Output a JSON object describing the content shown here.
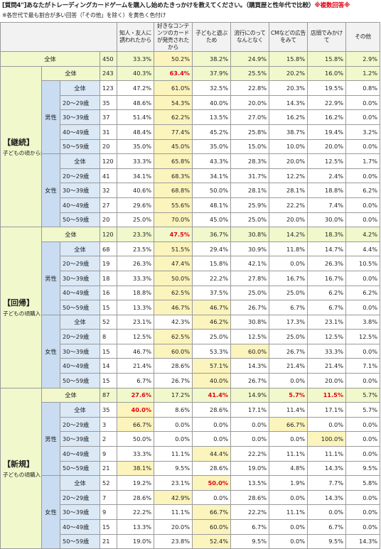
{
  "title_main": "[質問4\"]あなたがトレーディングカードゲームを購入し始めたきっかけを教えてください。（購買歴と性年代で比較）",
  "title_tag": "※複数回答※",
  "note": "※各世代で最も割合が多い回答（「その他」を除く）を黄色く色付け",
  "columns": [
    "知人・友人に誘われたから",
    "好きなコンテンツのカードが発売されたから",
    "子どもと遊ぶため",
    "流行にのってなんとなく",
    "CMなどの広告をみて",
    "店頭でみかけて",
    "その他"
  ],
  "highlight_color": "#fbf4bd",
  "total_row": {
    "label": "全体",
    "n": "450",
    "values": [
      "33.3%",
      "50.2%",
      "38.2%",
      "24.9%",
      "15.8%",
      "15.8%",
      "2.9%"
    ],
    "hl": [
      1
    ]
  },
  "segments": [
    {
      "name": "【継続】",
      "desc": "子どもの頃から継続して購入している",
      "total": {
        "label": "全体",
        "n": "243",
        "values": [
          "40.3%",
          "63.4%",
          "37.9%",
          "25.5%",
          "20.2%",
          "16.0%",
          "1.2%"
        ],
        "red": [
          1
        ],
        "hl": []
      },
      "groups": [
        {
          "gender": "男性",
          "rows": [
            {
              "label": "全体",
              "n": "123",
              "values": [
                "47.2%",
                "61.0%",
                "32.5%",
                "22.8%",
                "20.3%",
                "19.5%",
                "0.8%"
              ],
              "hl": [
                1
              ]
            },
            {
              "label": "20～29歳",
              "n": "35",
              "values": [
                "48.6%",
                "54.3%",
                "40.0%",
                "20.0%",
                "14.3%",
                "22.9%",
                "0.0%"
              ],
              "hl": [
                1
              ]
            },
            {
              "label": "30～39歳",
              "n": "37",
              "values": [
                "51.4%",
                "62.2%",
                "13.5%",
                "27.0%",
                "16.2%",
                "16.2%",
                "0.0%"
              ],
              "hl": [
                1
              ]
            },
            {
              "label": "40～49歳",
              "n": "31",
              "values": [
                "48.4%",
                "77.4%",
                "45.2%",
                "25.8%",
                "38.7%",
                "19.4%",
                "3.2%"
              ],
              "hl": [
                1
              ]
            },
            {
              "label": "50～59歳",
              "n": "20",
              "values": [
                "35.0%",
                "45.0%",
                "35.0%",
                "15.0%",
                "10.0%",
                "20.0%",
                "0.0%"
              ],
              "hl": [
                1
              ]
            }
          ]
        },
        {
          "gender": "女性",
          "rows": [
            {
              "label": "全体",
              "n": "120",
              "values": [
                "33.3%",
                "65.8%",
                "43.3%",
                "28.3%",
                "20.0%",
                "12.5%",
                "1.7%"
              ],
              "hl": [
                1
              ]
            },
            {
              "label": "20～29歳",
              "n": "41",
              "values": [
                "34.1%",
                "68.3%",
                "34.1%",
                "31.7%",
                "12.2%",
                "2.4%",
                "0.0%"
              ],
              "hl": [
                1
              ]
            },
            {
              "label": "30～39歳",
              "n": "32",
              "values": [
                "40.6%",
                "68.8%",
                "50.0%",
                "28.1%",
                "28.1%",
                "18.8%",
                "6.2%"
              ],
              "hl": [
                1
              ]
            },
            {
              "label": "40～49歳",
              "n": "27",
              "values": [
                "29.6%",
                "55.6%",
                "48.1%",
                "25.9%",
                "22.2%",
                "7.4%",
                "0.0%"
              ],
              "hl": [
                1
              ]
            },
            {
              "label": "50～59歳",
              "n": "20",
              "values": [
                "25.0%",
                "70.0%",
                "45.0%",
                "25.0%",
                "20.0%",
                "30.0%",
                "0.0%"
              ],
              "hl": [
                1
              ]
            }
          ]
        }
      ]
    },
    {
      "name": "【回帰】",
      "desc": "子どもの頃購入したことがあり、大人になってから再度購入したことがある",
      "total": {
        "label": "全体",
        "n": "120",
        "values": [
          "23.3%",
          "47.5%",
          "36.7%",
          "30.8%",
          "14.2%",
          "18.3%",
          "4.2%"
        ],
        "red": [
          1
        ],
        "hl": []
      },
      "groups": [
        {
          "gender": "男性",
          "rows": [
            {
              "label": "全体",
              "n": "68",
              "values": [
                "23.5%",
                "51.5%",
                "29.4%",
                "30.9%",
                "11.8%",
                "14.7%",
                "4.4%"
              ],
              "hl": [
                1
              ]
            },
            {
              "label": "20～29歳",
              "n": "19",
              "values": [
                "26.3%",
                "47.4%",
                "15.8%",
                "42.1%",
                "0.0%",
                "26.3%",
                "10.5%"
              ],
              "hl": [
                1
              ]
            },
            {
              "label": "30～39歳",
              "n": "18",
              "values": [
                "33.3%",
                "50.0%",
                "22.2%",
                "27.8%",
                "16.7%",
                "16.7%",
                "0.0%"
              ],
              "hl": [
                1
              ]
            },
            {
              "label": "40～49歳",
              "n": "16",
              "values": [
                "18.8%",
                "62.5%",
                "37.5%",
                "25.0%",
                "25.0%",
                "6.2%",
                "6.2%"
              ],
              "hl": [
                1
              ]
            },
            {
              "label": "50～59歳",
              "n": "15",
              "values": [
                "13.3%",
                "46.7%",
                "46.7%",
                "26.7%",
                "6.7%",
                "6.7%",
                "0.0%"
              ],
              "hl": [
                1,
                2
              ]
            }
          ]
        },
        {
          "gender": "女性",
          "rows": [
            {
              "label": "全体",
              "n": "52",
              "values": [
                "23.1%",
                "42.3%",
                "46.2%",
                "30.8%",
                "17.3%",
                "23.1%",
                "3.8%"
              ],
              "hl": [
                2
              ]
            },
            {
              "label": "20～29歳",
              "n": "8",
              "values": [
                "12.5%",
                "62.5%",
                "25.0%",
                "12.5%",
                "25.0%",
                "12.5%",
                "12.5%"
              ],
              "hl": [
                1
              ]
            },
            {
              "label": "30～39歳",
              "n": "15",
              "values": [
                "46.7%",
                "60.0%",
                "53.3%",
                "60.0%",
                "26.7%",
                "33.3%",
                "0.0%"
              ],
              "hl": [
                1,
                3
              ]
            },
            {
              "label": "40～49歳",
              "n": "14",
              "values": [
                "21.4%",
                "28.6%",
                "57.1%",
                "14.3%",
                "21.4%",
                "21.4%",
                "7.1%"
              ],
              "hl": [
                2
              ]
            },
            {
              "label": "50～59歳",
              "n": "15",
              "values": [
                "6.7%",
                "26.7%",
                "40.0%",
                "26.7%",
                "0.0%",
                "20.0%",
                "0.0%"
              ],
              "hl": [
                2
              ]
            }
          ]
        }
      ]
    },
    {
      "name": "【新規】",
      "desc": "子どもの頃購入したことはないが、大人になってから購入したことがある",
      "total": {
        "label": "全体",
        "n": "87",
        "values": [
          "27.6%",
          "17.2%",
          "41.4%",
          "14.9%",
          "5.7%",
          "11.5%",
          "5.7%"
        ],
        "red": [
          0,
          2,
          4,
          5
        ],
        "hl": []
      },
      "groups": [
        {
          "gender": "男性",
          "rows": [
            {
              "label": "全体",
              "n": "35",
              "values": [
                "40.0%",
                "8.6%",
                "28.6%",
                "17.1%",
                "11.4%",
                "17.1%",
                "5.7%"
              ],
              "hl": [
                0
              ],
              "red": [
                0
              ]
            },
            {
              "label": "20～29歳",
              "n": "3",
              "values": [
                "66.7%",
                "0.0%",
                "0.0%",
                "0.0%",
                "66.7%",
                "0.0%",
                "0.0%"
              ],
              "hl": [
                0,
                4
              ]
            },
            {
              "label": "30～39歳",
              "n": "2",
              "values": [
                "50.0%",
                "0.0%",
                "0.0%",
                "0.0%",
                "0.0%",
                "100.0%",
                "0.0%"
              ],
              "hl": [
                5
              ]
            },
            {
              "label": "40～49歳",
              "n": "9",
              "values": [
                "33.3%",
                "11.1%",
                "44.4%",
                "22.2%",
                "11.1%",
                "11.1%",
                "0.0%"
              ],
              "hl": [
                2
              ]
            },
            {
              "label": "50～59歳",
              "n": "21",
              "values": [
                "38.1%",
                "9.5%",
                "28.6%",
                "19.0%",
                "4.8%",
                "14.3%",
                "9.5%"
              ],
              "hl": [
                0
              ]
            }
          ]
        },
        {
          "gender": "女性",
          "rows": [
            {
              "label": "全体",
              "n": "52",
              "values": [
                "19.2%",
                "23.1%",
                "50.0%",
                "13.5%",
                "1.9%",
                "7.7%",
                "5.8%"
              ],
              "hl": [
                2
              ],
              "red": [
                2
              ]
            },
            {
              "label": "20～29歳",
              "n": "7",
              "values": [
                "28.6%",
                "42.9%",
                "0.0%",
                "28.6%",
                "0.0%",
                "14.3%",
                "0.0%"
              ],
              "hl": [
                1
              ]
            },
            {
              "label": "30～39歳",
              "n": "9",
              "values": [
                "22.2%",
                "11.1%",
                "66.7%",
                "22.2%",
                "11.1%",
                "0.0%",
                "0.0%"
              ],
              "hl": [
                2
              ]
            },
            {
              "label": "40～49歳",
              "n": "15",
              "values": [
                "13.3%",
                "20.0%",
                "60.0%",
                "6.7%",
                "0.0%",
                "6.7%",
                "0.0%"
              ],
              "hl": [
                2
              ]
            },
            {
              "label": "50～59歳",
              "n": "21",
              "values": [
                "19.0%",
                "23.8%",
                "52.4%",
                "9.5%",
                "0.0%",
                "9.5%",
                "14.3%"
              ],
              "hl": [
                2
              ]
            }
          ]
        }
      ]
    }
  ]
}
